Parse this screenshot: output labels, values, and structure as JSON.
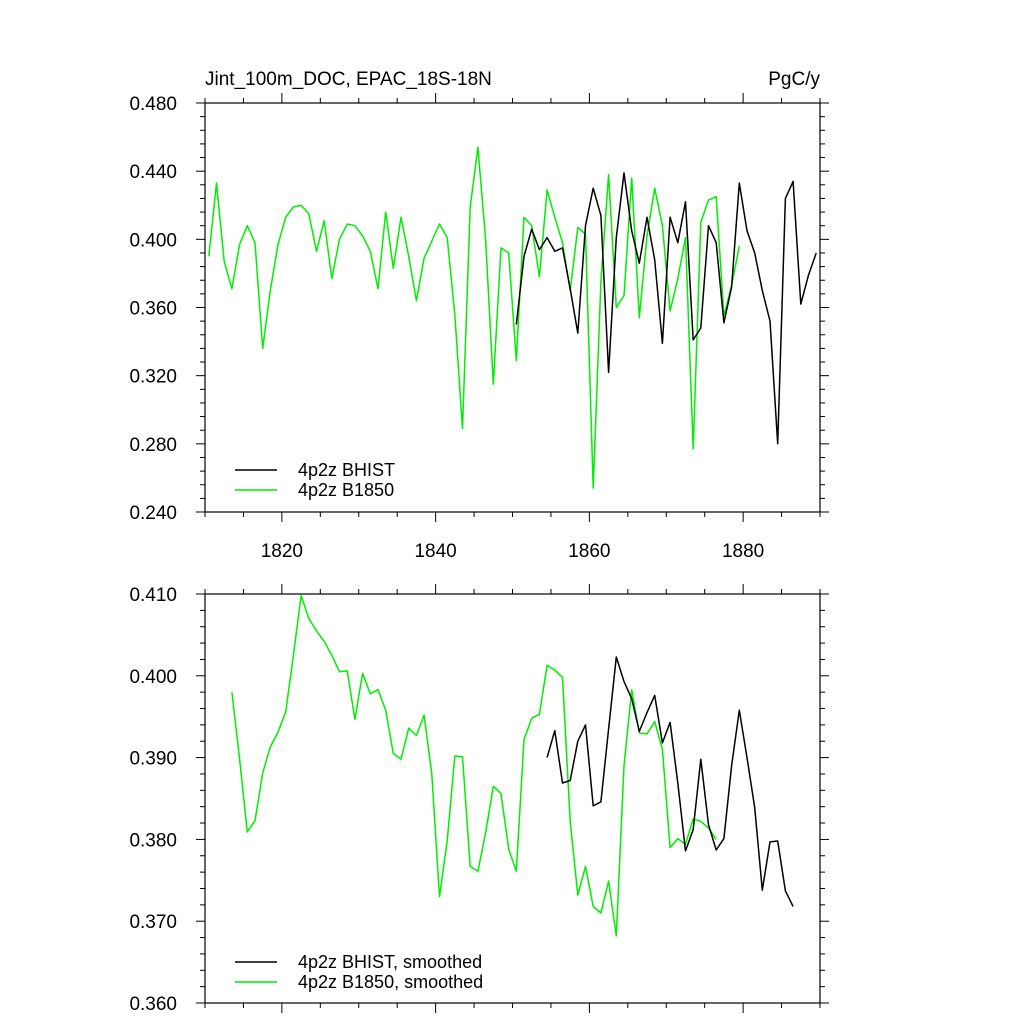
{
  "chart_data": [
    {
      "type": "line",
      "title": "Jint_100m_DOC, EPAC_18S-18N",
      "units": "PgC/y",
      "xlabel": "",
      "ylabel": "",
      "xlim": [
        1810,
        1890
      ],
      "ylim": [
        0.24,
        0.48
      ],
      "xticks": [
        1820,
        1840,
        1860,
        1880
      ],
      "xtick_labels": [
        "1820",
        "1840",
        "1860",
        "1880"
      ],
      "yticks": [
        0.24,
        0.28,
        0.32,
        0.36,
        0.4,
        0.44,
        0.48
      ],
      "ytick_labels": [
        "0.240",
        "0.280",
        "0.320",
        "0.360",
        "0.400",
        "0.440",
        "0.480"
      ],
      "legend_position": "bottom-left",
      "series": [
        {
          "name": "4p2z BHIST",
          "color": "#000000",
          "x": [
            1850.5,
            1851.5,
            1852.5,
            1853.5,
            1854.5,
            1855.5,
            1856.5,
            1857.5,
            1858.5,
            1859.5,
            1860.5,
            1861.5,
            1862.5,
            1863.5,
            1864.5,
            1865.5,
            1866.5,
            1867.5,
            1868.5,
            1869.5,
            1870.5,
            1871.5,
            1872.5,
            1873.5,
            1874.5,
            1875.5,
            1876.5,
            1877.5,
            1878.5,
            1879.5,
            1880.5,
            1881.5,
            1882.5,
            1883.5,
            1884.5,
            1885.5,
            1886.5,
            1887.5,
            1888.5,
            1889.5
          ],
          "y": [
            0.35,
            0.39,
            0.406,
            0.394,
            0.401,
            0.393,
            0.395,
            0.371,
            0.345,
            0.408,
            0.43,
            0.414,
            0.322,
            0.401,
            0.439,
            0.405,
            0.386,
            0.413,
            0.388,
            0.339,
            0.413,
            0.398,
            0.422,
            0.341,
            0.348,
            0.408,
            0.398,
            0.351,
            0.372,
            0.433,
            0.405,
            0.392,
            0.37,
            0.352,
            0.28,
            0.424,
            0.434,
            0.362,
            0.379,
            0.392
          ]
        },
        {
          "name": "4p2z B1850",
          "color": "#00ee00",
          "x": [
            1810.5,
            1811.5,
            1812.5,
            1813.5,
            1814.5,
            1815.5,
            1816.5,
            1817.5,
            1818.5,
            1819.5,
            1820.5,
            1821.5,
            1822.5,
            1823.5,
            1824.5,
            1825.5,
            1826.5,
            1827.5,
            1828.5,
            1829.5,
            1830.5,
            1831.5,
            1832.5,
            1833.5,
            1834.5,
            1835.5,
            1836.5,
            1837.5,
            1838.5,
            1839.5,
            1840.5,
            1841.5,
            1842.5,
            1843.5,
            1844.5,
            1845.5,
            1846.5,
            1847.5,
            1848.5,
            1849.5,
            1850.5,
            1851.5,
            1852.5,
            1853.5,
            1854.5,
            1855.5,
            1856.5,
            1857.5,
            1858.5,
            1859.5,
            1860.5,
            1861.5,
            1862.5,
            1863.5,
            1864.5,
            1865.5,
            1866.5,
            1867.5,
            1868.5,
            1869.5,
            1870.5,
            1871.5,
            1872.5,
            1873.5,
            1874.5,
            1875.5,
            1876.5,
            1877.5,
            1878.5,
            1879.5
          ],
          "y": [
            0.39,
            0.433,
            0.387,
            0.371,
            0.397,
            0.408,
            0.398,
            0.336,
            0.37,
            0.397,
            0.413,
            0.419,
            0.42,
            0.415,
            0.393,
            0.411,
            0.377,
            0.4,
            0.409,
            0.408,
            0.402,
            0.393,
            0.371,
            0.416,
            0.383,
            0.413,
            0.39,
            0.364,
            0.389,
            0.399,
            0.409,
            0.401,
            0.356,
            0.289,
            0.419,
            0.454,
            0.4,
            0.315,
            0.395,
            0.392,
            0.329,
            0.413,
            0.408,
            0.378,
            0.429,
            0.413,
            0.398,
            0.37,
            0.407,
            0.403,
            0.254,
            0.375,
            0.438,
            0.36,
            0.367,
            0.436,
            0.354,
            0.402,
            0.43,
            0.408,
            0.358,
            0.377,
            0.401,
            0.277,
            0.41,
            0.423,
            0.425,
            0.355,
            0.373,
            0.396
          ]
        }
      ]
    },
    {
      "type": "line",
      "title": "",
      "xlabel": "",
      "ylabel": "",
      "xlim": [
        1810,
        1890
      ],
      "ylim": [
        0.36,
        0.41
      ],
      "xticks": [
        1820,
        1840,
        1860,
        1880
      ],
      "yticks": [
        0.36,
        0.37,
        0.38,
        0.39,
        0.4,
        0.41
      ],
      "ytick_labels": [
        "0.360",
        "0.370",
        "0.380",
        "0.390",
        "0.400",
        "0.410"
      ],
      "legend_position": "bottom-left",
      "series": [
        {
          "name": "4p2z BHIST, smoothed",
          "color": "#000000",
          "x": [
            1854.5,
            1855.5,
            1856.5,
            1857.5,
            1858.5,
            1859.5,
            1860.5,
            1861.5,
            1862.5,
            1863.5,
            1864.5,
            1865.5,
            1866.5,
            1867.5,
            1868.5,
            1869.5,
            1870.5,
            1871.5,
            1872.5,
            1873.5,
            1874.5,
            1875.5,
            1876.5,
            1877.5,
            1878.5,
            1879.5,
            1880.5,
            1881.5,
            1882.5,
            1883.5,
            1884.5,
            1885.5,
            1886.5
          ],
          "y": [
            0.39,
            0.3933,
            0.3869,
            0.3872,
            0.392,
            0.394,
            0.3841,
            0.3846,
            0.3935,
            0.4023,
            0.3993,
            0.3972,
            0.3932,
            0.3955,
            0.3976,
            0.3918,
            0.3943,
            0.3869,
            0.3786,
            0.3812,
            0.3898,
            0.3818,
            0.3787,
            0.3801,
            0.389,
            0.3958,
            0.39,
            0.3839,
            0.3738,
            0.3797,
            0.3798,
            0.3737,
            0.3718
          ]
        },
        {
          "name": "4p2z B1850, smoothed",
          "color": "#00ee00",
          "x": [
            1813.5,
            1814.5,
            1815.5,
            1816.5,
            1817.5,
            1818.5,
            1819.5,
            1820.5,
            1821.5,
            1822.5,
            1823.5,
            1824.5,
            1825.5,
            1826.5,
            1827.5,
            1828.5,
            1829.5,
            1830.5,
            1831.5,
            1832.5,
            1833.5,
            1834.5,
            1835.5,
            1836.5,
            1837.5,
            1838.5,
            1839.5,
            1840.5,
            1841.5,
            1842.5,
            1843.5,
            1844.5,
            1845.5,
            1846.5,
            1847.5,
            1848.5,
            1849.5,
            1850.5,
            1851.5,
            1852.5,
            1853.5,
            1854.5,
            1855.5,
            1856.5,
            1857.5,
            1858.5,
            1859.5,
            1860.5,
            1861.5,
            1862.5,
            1863.5,
            1864.5,
            1865.5,
            1866.5,
            1867.5,
            1868.5,
            1869.5,
            1870.5,
            1871.5,
            1872.5,
            1873.5,
            1874.5,
            1875.5,
            1876.5
          ],
          "y": [
            0.398,
            0.3898,
            0.3809,
            0.3823,
            0.3881,
            0.3913,
            0.3931,
            0.3956,
            0.4025,
            0.4098,
            0.407,
            0.4055,
            0.4042,
            0.4025,
            0.4005,
            0.4006,
            0.3947,
            0.4003,
            0.3978,
            0.3983,
            0.3958,
            0.3905,
            0.3898,
            0.3936,
            0.3927,
            0.3952,
            0.388,
            0.373,
            0.3798,
            0.3902,
            0.3901,
            0.3767,
            0.3761,
            0.3808,
            0.3865,
            0.3856,
            0.3788,
            0.3761,
            0.3922,
            0.3948,
            0.3953,
            0.4013,
            0.4007,
            0.3998,
            0.3822,
            0.3732,
            0.3767,
            0.3718,
            0.371,
            0.3749,
            0.3682,
            0.389,
            0.3983,
            0.393,
            0.3929,
            0.3944,
            0.391,
            0.379,
            0.3801,
            0.3794,
            0.3825,
            0.3822,
            0.3814,
            0.38
          ]
        }
      ]
    }
  ]
}
